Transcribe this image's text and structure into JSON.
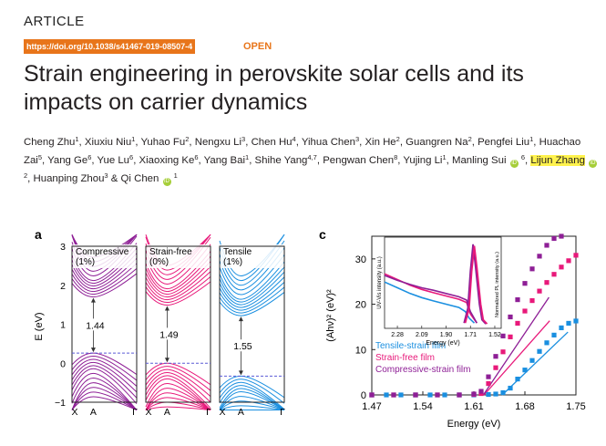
{
  "header": {
    "article_label": "ARTICLE",
    "doi": "https://doi.org/10.1038/s41467-019-08507-4",
    "open_label": "OPEN",
    "doi_color": "#e8751a"
  },
  "paper": {
    "title": "Strain engineering in perovskite solar cells and its impacts on carrier dynamics",
    "authors": [
      {
        "name": "Cheng Zhu",
        "aff": "1"
      },
      {
        "name": "Xiuxiu Niu",
        "aff": "1"
      },
      {
        "name": "Yuhao Fu",
        "aff": "2"
      },
      {
        "name": "Nengxu Li",
        "aff": "3"
      },
      {
        "name": "Chen Hu",
        "aff": "4"
      },
      {
        "name": "Yihua Chen",
        "aff": "3"
      },
      {
        "name": "Xin He",
        "aff": "2"
      },
      {
        "name": "Guangren Na",
        "aff": "2"
      },
      {
        "name": "Pengfei Liu",
        "aff": "1"
      },
      {
        "name": "Huachao Zai",
        "aff": "5"
      },
      {
        "name": "Yang Ge",
        "aff": "6"
      },
      {
        "name": "Yue Lu",
        "aff": "6"
      },
      {
        "name": "Xiaoxing Ke",
        "aff": "6"
      },
      {
        "name": "Yang Bai",
        "aff": "1"
      },
      {
        "name": "Shihe Yang",
        "aff": "4,7"
      },
      {
        "name": "Pengwan Chen",
        "aff": "8"
      },
      {
        "name": "Yujing Li",
        "aff": "1"
      },
      {
        "name": "Manling Sui",
        "aff": "6",
        "orcid": true
      },
      {
        "name": "Lijun Zhang",
        "aff": "2",
        "orcid": true,
        "highlight": true
      },
      {
        "name": "Huanping Zhou",
        "aff": "3"
      },
      {
        "name": "Qi Chen",
        "aff": "1",
        "orcid": true
      }
    ],
    "separator": ", ",
    "last_separator": " & "
  },
  "figure_a": {
    "panel_label": "a",
    "ylabel": "E (eV)",
    "yticks": [
      "3",
      "2",
      "1",
      "0",
      "−1"
    ],
    "panels": [
      {
        "name": "Compressive",
        "strain": "(1%)",
        "gap": "1.44",
        "color": "#8e1f96",
        "xticks": [
          "X",
          "A",
          "Γ"
        ]
      },
      {
        "name": "Strain-free",
        "strain": "(0%)",
        "gap": "1.49",
        "color": "#e8197a",
        "xticks": [
          "X",
          "A",
          "Γ"
        ]
      },
      {
        "name": "Tensile",
        "strain": "(1%)",
        "gap": "1.55",
        "color": "#1a8fe0",
        "xticks": [
          "X",
          "A",
          "Γ"
        ]
      }
    ]
  },
  "chart_data": {
    "type": "scatter",
    "panel_label": "c",
    "title": "",
    "xlabel": "Energy (eV)",
    "ylabel": "(Ahν)² (eV)²",
    "xlim": [
      1.47,
      1.75
    ],
    "ylim": [
      0,
      35
    ],
    "xticks": [
      "1.47",
      "1.54",
      "1.61",
      "1.68",
      "1.75"
    ],
    "yticks": [
      "0",
      "10",
      "20",
      "30"
    ],
    "series": [
      {
        "name": "Tensile-strain film",
        "color": "#1a8fe0",
        "x": [
          1.47,
          1.49,
          1.51,
          1.53,
          1.55,
          1.57,
          1.59,
          1.61,
          1.63,
          1.64,
          1.65,
          1.66,
          1.67,
          1.68,
          1.69,
          1.7,
          1.71,
          1.72,
          1.73,
          1.74,
          1.75
        ],
        "y": [
          0,
          0,
          0,
          0,
          0,
          0,
          0,
          0,
          0.1,
          0.2,
          0.5,
          1.5,
          3.5,
          5.5,
          7.6,
          9.6,
          11.5,
          13.2,
          14.8,
          15.8,
          16.3
        ]
      },
      {
        "name": "Strain-free film",
        "color": "#e8197a",
        "x": [
          1.47,
          1.5,
          1.53,
          1.56,
          1.59,
          1.61,
          1.62,
          1.63,
          1.64,
          1.65,
          1.66,
          1.67,
          1.68,
          1.69,
          1.7,
          1.71,
          1.72,
          1.73,
          1.74,
          1.75
        ],
        "y": [
          0,
          0,
          0,
          0,
          0,
          0.1,
          0.3,
          2.5,
          6,
          9.5,
          12.8,
          15.8,
          18.5,
          20.8,
          22.9,
          24.8,
          26.6,
          28.2,
          29.6,
          30.8
        ]
      },
      {
        "name": "Compressive-strain film",
        "color": "#8e1f96",
        "x": [
          1.47,
          1.5,
          1.53,
          1.56,
          1.59,
          1.61,
          1.62,
          1.63,
          1.64,
          1.65,
          1.66,
          1.67,
          1.68,
          1.69,
          1.7,
          1.71,
          1.72,
          1.73
        ],
        "y": [
          0,
          0,
          0,
          0,
          0,
          0.2,
          0.8,
          4,
          8.5,
          13,
          17.2,
          21,
          24.6,
          27.8,
          30.6,
          33,
          34.5,
          35
        ]
      }
    ],
    "fit_lines": [
      {
        "color": "#1a8fe0",
        "x0": 1.649,
        "note": "tensile"
      },
      {
        "color": "#e8197a",
        "x0": 1.624,
        "note": "strain-free"
      },
      {
        "color": "#8e1f96",
        "x0": 1.623,
        "note": "compressive"
      }
    ],
    "inset": {
      "xlabel": "Energy (eV)",
      "ylabel_left": "UV-Vis intensity (a.u.)",
      "ylabel_right": "Normalized PL intensity (a.u.)",
      "xticks": [
        "2.28",
        "2.09",
        "1.90",
        "1.71",
        "1.52"
      ],
      "xlim": [
        2.38,
        1.47
      ],
      "absorbance": [
        {
          "color": "#1a8fe0",
          "x": [
            2.38,
            2.28,
            2.18,
            2.09,
            2.0,
            1.9,
            1.8,
            1.75,
            1.72,
            1.68
          ],
          "y": [
            0.52,
            0.45,
            0.38,
            0.33,
            0.29,
            0.25,
            0.21,
            0.16,
            0.08,
            0.02
          ]
        },
        {
          "color": "#e8197a",
          "x": [
            2.38,
            2.28,
            2.18,
            2.09,
            2.0,
            1.9,
            1.8,
            1.74,
            1.71,
            1.66
          ],
          "y": [
            0.62,
            0.55,
            0.48,
            0.43,
            0.39,
            0.35,
            0.31,
            0.27,
            0.13,
            0.02
          ]
        },
        {
          "color": "#8e1f96",
          "x": [
            2.38,
            2.28,
            2.18,
            2.09,
            2.0,
            1.9,
            1.8,
            1.74,
            1.71,
            1.66
          ],
          "y": [
            0.6,
            0.54,
            0.49,
            0.45,
            0.42,
            0.38,
            0.34,
            0.3,
            0.16,
            0.02
          ]
        }
      ],
      "pl": [
        {
          "color": "#8e1f96",
          "x": [
            1.76,
            1.73,
            1.71,
            1.69,
            1.67,
            1.64,
            1.62,
            1.59
          ],
          "y": [
            0.02,
            0.2,
            0.65,
            0.98,
            0.7,
            0.25,
            0.06,
            0.01
          ]
        },
        {
          "color": "#e8197a",
          "x": [
            1.75,
            1.72,
            1.7,
            1.68,
            1.66,
            1.63,
            1.61,
            1.58
          ],
          "y": [
            0.02,
            0.2,
            0.65,
            0.96,
            0.7,
            0.25,
            0.06,
            0.01
          ]
        }
      ]
    }
  }
}
